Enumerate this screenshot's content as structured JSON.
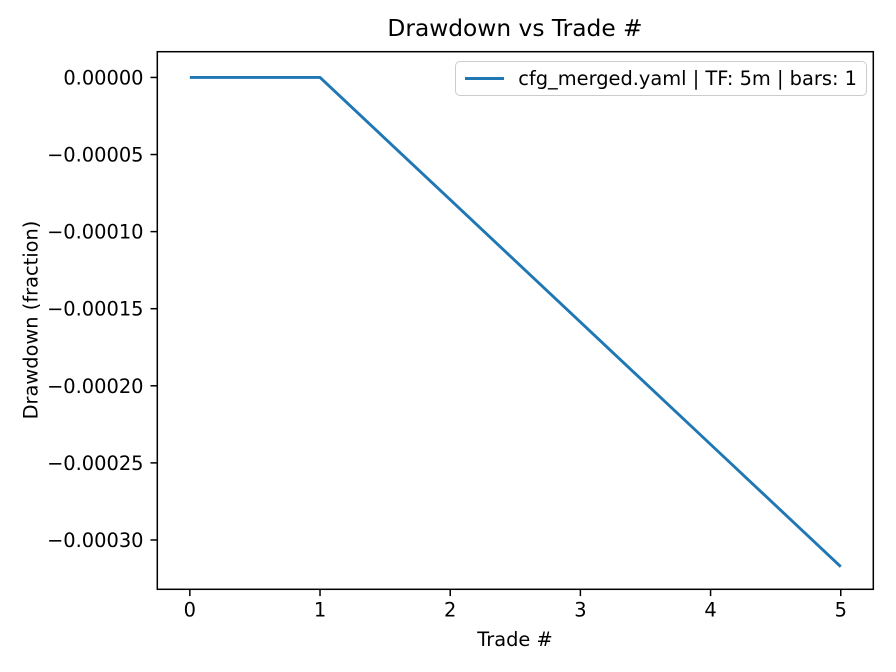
{
  "figure": {
    "title": "Drawdown vs Trade #",
    "background": "#ffffff"
  },
  "axes": {
    "xlabel": "Trade #",
    "ylabel": "Drawdown (fraction)"
  },
  "legend": {
    "label": "cfg_merged.yaml | TF: 5m | bars: 1",
    "line_color": "#1f77b4"
  },
  "chart_data": {
    "type": "line",
    "title": "Drawdown vs Trade #",
    "xlabel": "Trade #",
    "ylabel": "Drawdown (fraction)",
    "x": [
      0,
      1,
      2,
      3,
      4,
      5
    ],
    "series": [
      {
        "name": "cfg_merged.yaml | TF: 5m | bars: 1",
        "color": "#1f77b4",
        "values": [
          0,
          0,
          -7.93e-05,
          -0.0001587,
          -0.000238,
          -0.0003173
        ]
      }
    ],
    "xlim": [
      -0.25,
      5.25
    ],
    "ylim": [
      -0.000332,
      1.67e-05
    ],
    "xticks": {
      "values": [
        0,
        1,
        2,
        3,
        4,
        5
      ],
      "labels": [
        "0",
        "1",
        "2",
        "3",
        "4",
        "5"
      ]
    },
    "yticks": {
      "values": [
        0.0,
        -5e-05,
        -0.0001,
        -0.00015,
        -0.0002,
        -0.00025,
        -0.0003
      ],
      "labels": [
        "0.00000",
        "−0.00005",
        "−0.00010",
        "−0.00015",
        "−0.00020",
        "−0.00025",
        "−0.00030"
      ]
    },
    "grid": false,
    "legend_position": "upper right",
    "axis_color": "#000000"
  }
}
